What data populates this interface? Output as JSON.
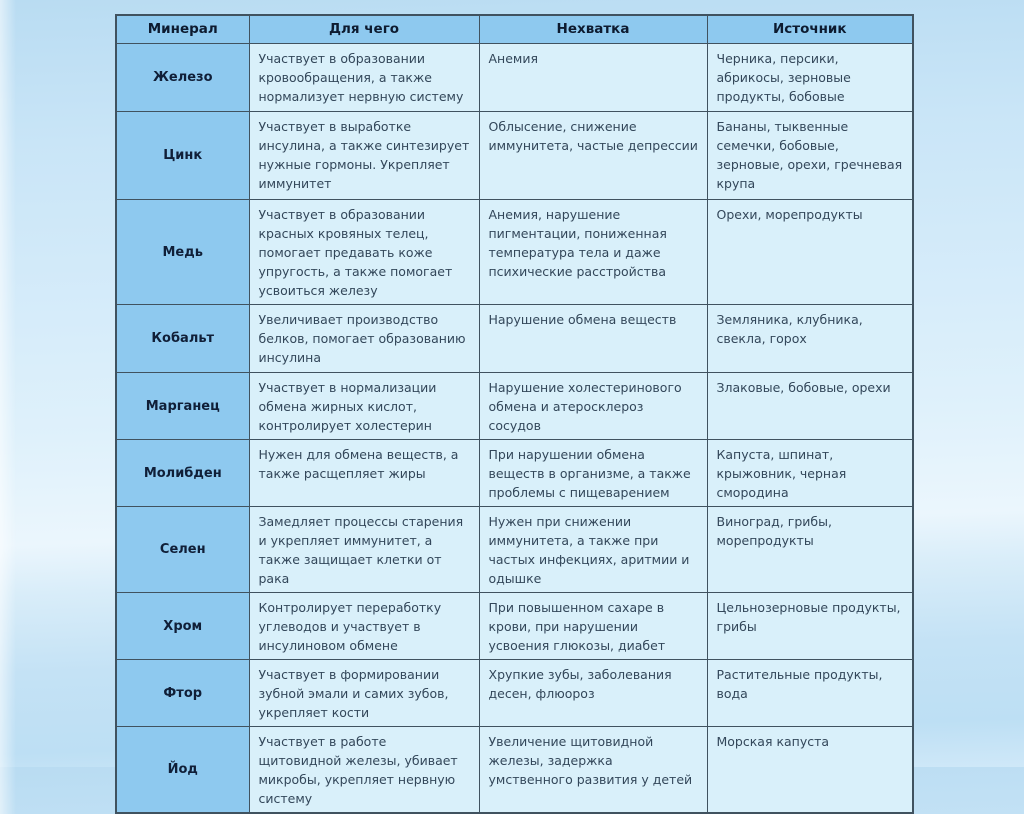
{
  "table": {
    "columns": [
      "Минерал",
      "Для чего",
      "Нехватка",
      "Источник"
    ],
    "rows": [
      {
        "mineral": "Железо",
        "purpose": "Участвует в образовании кровообращения, а также нормализует нервную систему",
        "deficiency": "Анемия",
        "source": "Черника, персики, абрикосы, зерновые продукты, бобовые"
      },
      {
        "mineral": "Цинк",
        "purpose": "Участвует в выработке инсулина, а также синтезирует нужные гормоны. Укрепляет иммунитет",
        "deficiency": "Облысение, снижение иммунитета, частые депрессии",
        "source": "Бананы, тыквенные семечки, бобовые, зерновые, орехи, гречневая крупа"
      },
      {
        "mineral": "Медь",
        "purpose": "Участвует в образовании красных кровяных телец, помогает предавать коже упругость, а также помогает усвоиться железу",
        "deficiency": "Анемия, нарушение пигментации, пониженная температура тела и даже психические расстройства",
        "source": "Орехи, морепродукты"
      },
      {
        "mineral": "Кобальт",
        "purpose": "Увеличивает производство белков, помогает образованию инсулина",
        "deficiency": "Нарушение обмена веществ",
        "source": "Земляника, клубника, свекла, горох"
      },
      {
        "mineral": "Марганец",
        "purpose": "Участвует в нормализации обмена жирных кислот, контролирует холестерин",
        "deficiency": "Нарушение холестеринового обмена и атеросклероз сосудов",
        "source": "Злаковые, бобовые, орехи"
      },
      {
        "mineral": "Молибден",
        "purpose": "Нужен для обмена веществ, а также расщепляет жиры",
        "deficiency": "При нарушении обмена веществ в организме, а также проблемы с пищеварением",
        "source": "Капуста, шпинат, крыжовник, черная смородина"
      },
      {
        "mineral": "Селен",
        "purpose": "Замедляет процессы старения и укрепляет иммунитет, а также защищает клетки от рака",
        "deficiency": "Нужен при снижении иммунитета, а также при частых инфекциях, аритмии и одышке",
        "source": "Виноград, грибы, морепродукты"
      },
      {
        "mineral": "Хром",
        "purpose": "Контролирует переработку углеводов и участвует в инсулиновом обмене",
        "deficiency": "При повышенном сахаре в крови, при нарушении усвоения глюкозы, диабет",
        "source": "Цельнозерновые продукты, грибы"
      },
      {
        "mineral": "Фтор",
        "purpose": "Участвует в формировании зубной эмали и самих зубов, укрепляет кости",
        "deficiency": "Хрупкие зубы, заболевания десен, флюороз",
        "source": "Растительные продукты, вода"
      },
      {
        "mineral": "Йод",
        "purpose": "Участвует в работе щитовидной железы, убивает микробы, укрепляет нервную систему",
        "deficiency": "Увеличение щитовидной железы, задержка умственного развития у детей",
        "source": "Морская капуста"
      }
    ]
  },
  "colors": {
    "header_fill": "#8ec9ef",
    "cell_fill": "#d9f0fa",
    "border": "#40525f",
    "header_text": "#0d1b30",
    "body_text": "#33475a",
    "background_top": "#b9dcf2",
    "background_light_band": "#ebf6fd"
  }
}
